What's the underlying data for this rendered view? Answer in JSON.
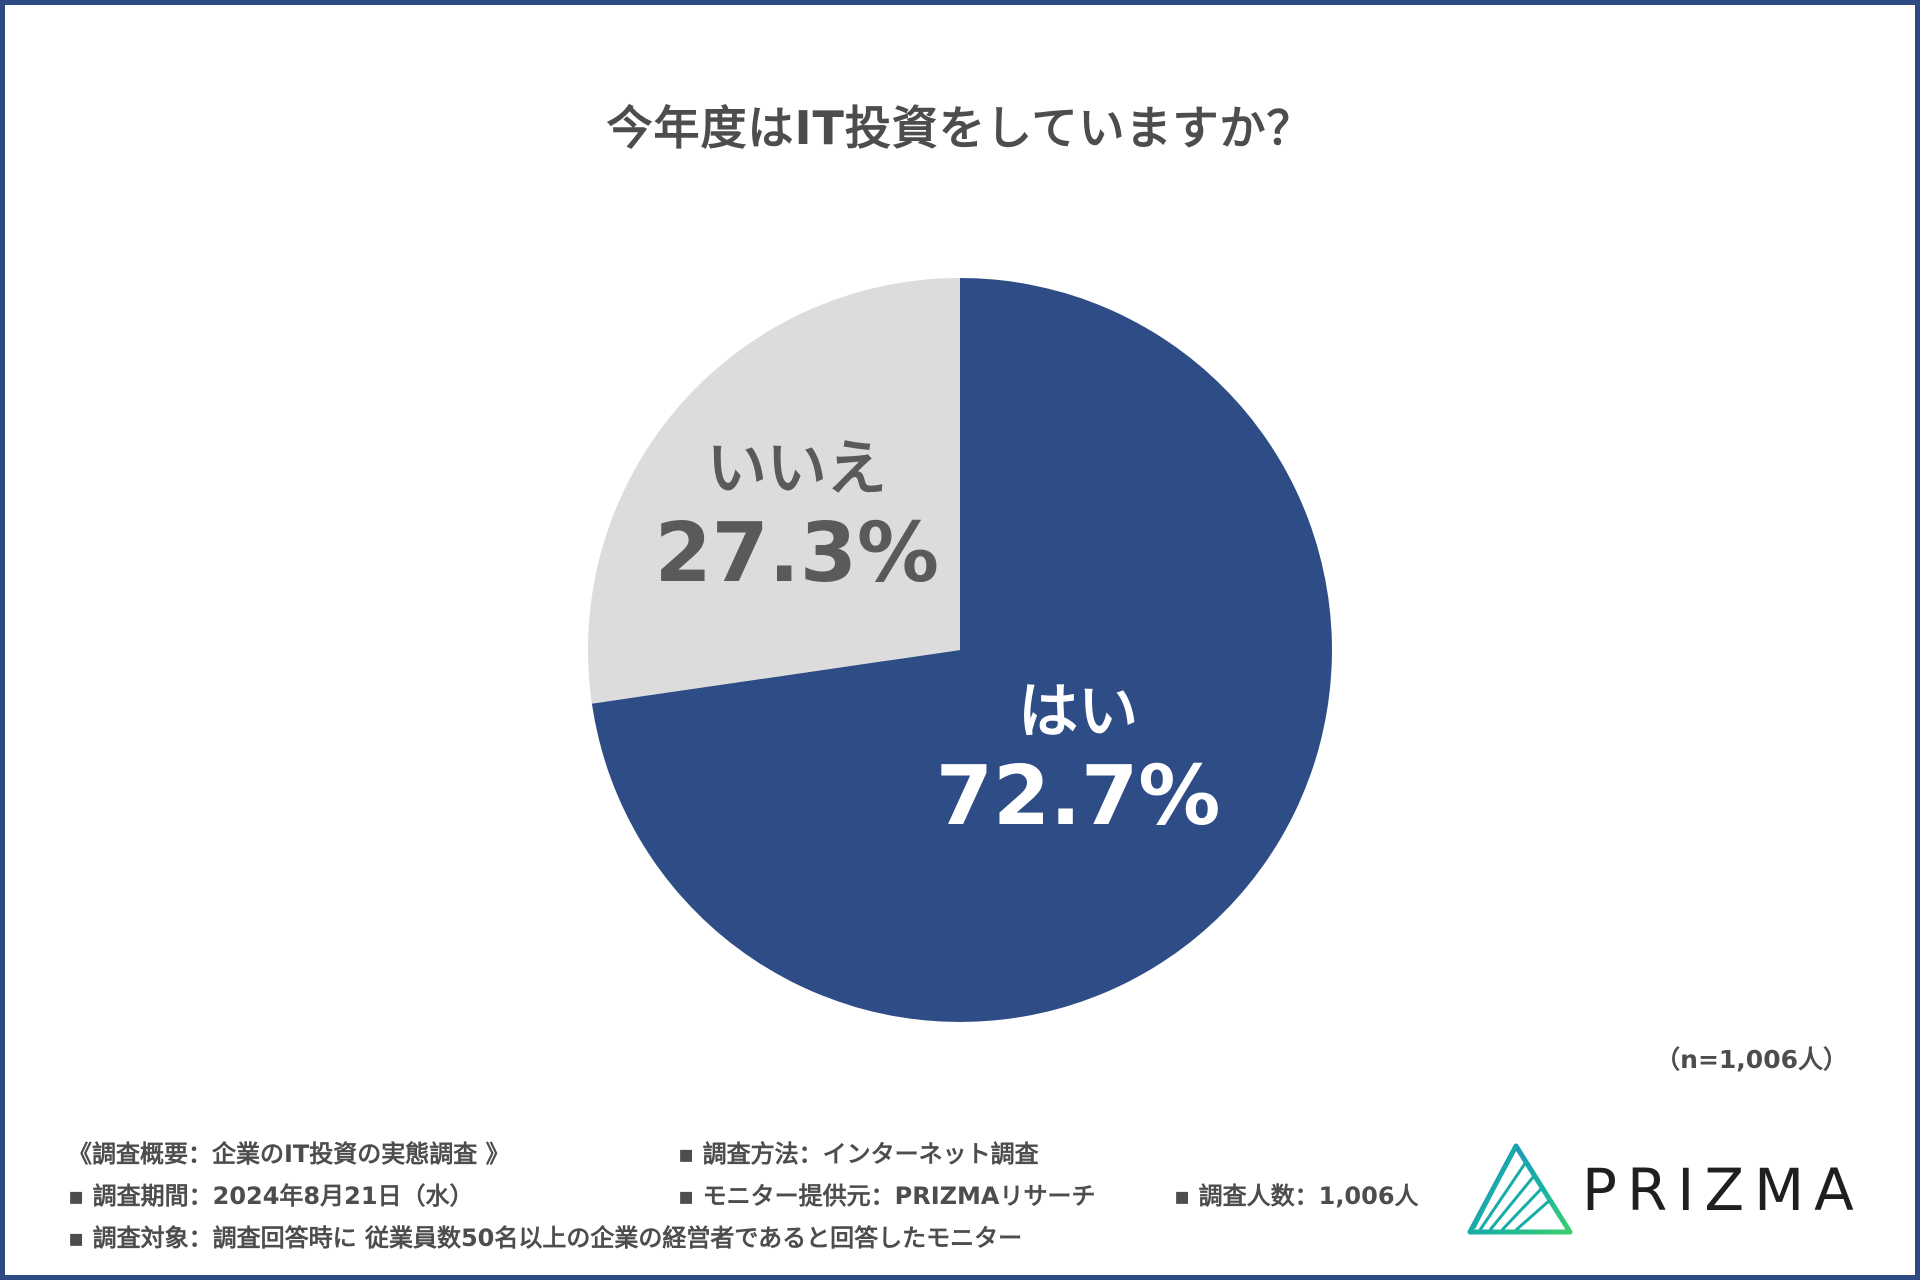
{
  "chart_data": {
    "type": "pie",
    "title": "今年度はIT投資をしていますか？",
    "slices": [
      {
        "label": "はい",
        "value": 72.7,
        "display": "72.7%",
        "color": "#2e4d87"
      },
      {
        "label": "いいえ",
        "value": 27.3,
        "display": "27.3%",
        "color": "#dcdcdc"
      }
    ],
    "sample_note": "（n=1,006人）"
  },
  "survey": {
    "overview": "《調査概要：企業のIT投資の実態調査 》",
    "method": "▪ 調査方法：インターネット調査",
    "period": "▪ 調査期間：2024年8月21日（水）",
    "provider": "▪ モニター提供元：PRIZMAリサーチ",
    "count": "▪ 調査人数：1,006人",
    "target": "▪ 調査対象：調査回答時に 従業員数50名以上の企業の経営者であると回答したモニター"
  },
  "brand": {
    "name": "PRIZMA",
    "logo_icon": "prism-triangle-icon"
  },
  "colors": {
    "accent": "#2e4d87",
    "neutral": "#dcdcdc",
    "text": "#4d4d4d"
  }
}
